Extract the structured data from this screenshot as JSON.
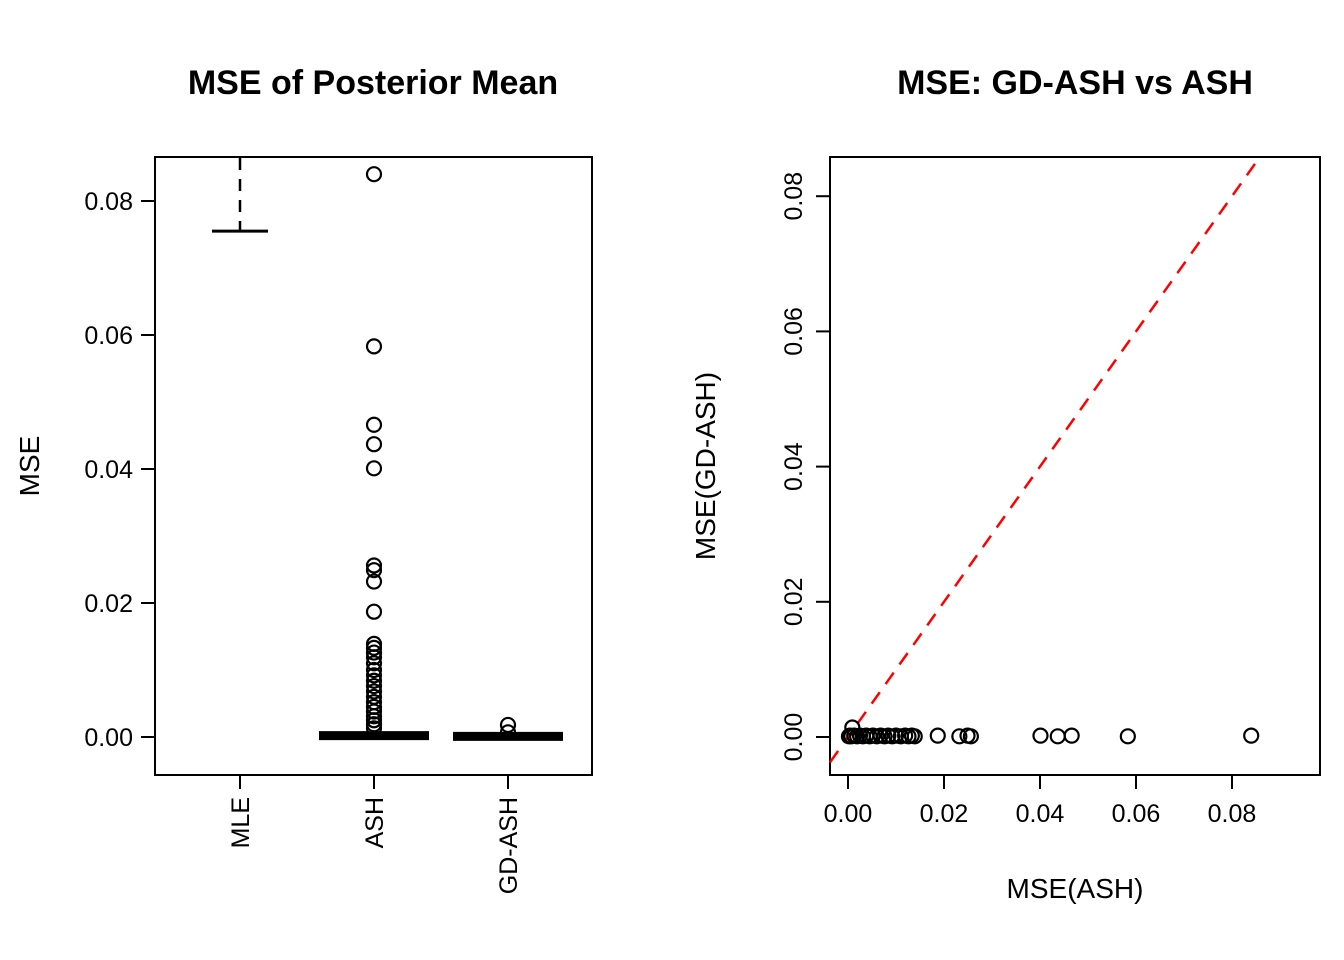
{
  "figure": {
    "background": "#ffffff",
    "foreground": "#000000",
    "accent_red": "#ff0000"
  },
  "chart_data": [
    {
      "id": "boxplot",
      "type": "boxplot",
      "title": "MSE of Posterior Mean",
      "ylabel": "MSE",
      "categories": [
        "MLE",
        "ASH",
        "GD-ASH"
      ],
      "yticks": [
        0,
        0.02,
        0.04,
        0.06,
        0.08
      ],
      "ytick_labels": [
        "0.00",
        "0.02",
        "0.04",
        "0.06",
        "0.08"
      ],
      "ylim": [
        -0.0057,
        0.0866
      ],
      "grid": false,
      "boxes": [
        {
          "label": "MLE",
          "style": "clipped-above",
          "staple": 0.0755,
          "whisker_clipped_at_top": true,
          "outliers": []
        },
        {
          "label": "ASH",
          "style": "collapsed",
          "bar": 0.0002,
          "outliers": [
            0.084,
            0.0583,
            0.0466,
            0.0437,
            0.0401,
            0.0256,
            0.0249,
            0.0232,
            0.0187,
            0.0139,
            0.0133,
            0.0126,
            0.0119,
            0.011,
            0.01,
            0.0092,
            0.0084,
            0.0076,
            0.0068,
            0.006,
            0.0052,
            0.0045,
            0.0038,
            0.0031,
            0.0025,
            0.0019,
            0.0013
          ]
        },
        {
          "label": "GD-ASH",
          "style": "collapsed",
          "bar": 0.0001,
          "outliers": [
            0.0018,
            0.0007
          ]
        }
      ]
    },
    {
      "id": "scatter",
      "type": "scatter",
      "title": "MSE: GD-ASH vs ASH",
      "xlabel": "MSE(ASH)",
      "ylabel": "MSE(GD-ASH)",
      "xticks": [
        0,
        0.02,
        0.04,
        0.06,
        0.08
      ],
      "xtick_labels": [
        "0.00",
        "0.02",
        "0.04",
        "0.06",
        "0.08"
      ],
      "yticks": [
        0,
        0.02,
        0.04,
        0.06,
        0.08
      ],
      "ytick_labels": [
        "0.00",
        "0.02",
        "0.04",
        "0.06",
        "0.08"
      ],
      "xlim": [
        -0.0037,
        0.0983
      ],
      "ylim": [
        -0.0057,
        0.0858
      ],
      "grid": false,
      "reference_line": {
        "slope": 1,
        "intercept": 0,
        "style": "dashed",
        "color": "#ff0000"
      },
      "points": [
        [
          0.0002,
          0.0001
        ],
        [
          0.0004,
          0.0002
        ],
        [
          0.0007,
          0.0001
        ],
        [
          0.0009,
          0.0014
        ],
        [
          0.0013,
          0.0002
        ],
        [
          0.0019,
          0.0001
        ],
        [
          0.0025,
          0.0002
        ],
        [
          0.0031,
          0.0001
        ],
        [
          0.0038,
          0.0002
        ],
        [
          0.0045,
          0.0001
        ],
        [
          0.0052,
          0.0002
        ],
        [
          0.006,
          0.0001
        ],
        [
          0.0068,
          0.0002
        ],
        [
          0.0076,
          0.0001
        ],
        [
          0.0084,
          0.0002
        ],
        [
          0.0092,
          0.0001
        ],
        [
          0.01,
          0.0002
        ],
        [
          0.011,
          0.0001
        ],
        [
          0.0119,
          0.0002
        ],
        [
          0.0126,
          0.0001
        ],
        [
          0.0133,
          0.0002
        ],
        [
          0.0139,
          0.0001
        ],
        [
          0.0187,
          0.0002
        ],
        [
          0.0232,
          0.0001
        ],
        [
          0.0249,
          0.0002
        ],
        [
          0.0256,
          0.0001
        ],
        [
          0.0401,
          0.0002
        ],
        [
          0.0437,
          0.0001
        ],
        [
          0.0466,
          0.0002
        ],
        [
          0.0583,
          0.0001
        ],
        [
          0.084,
          0.0002
        ]
      ]
    }
  ]
}
